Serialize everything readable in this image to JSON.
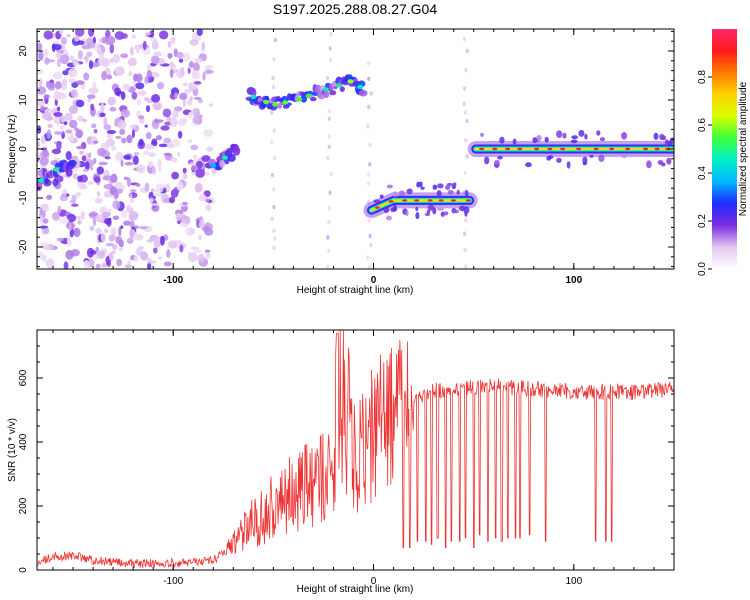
{
  "chart_data": [
    {
      "type": "heatmap",
      "title": "S197.2025.288.08.27.G04",
      "xlabel": "Height of straight line (km)",
      "ylabel": "Frequency (Hz)",
      "xlim": [
        -168,
        150
      ],
      "ylim": [
        -24.5,
        24.5
      ],
      "xticks": [
        -100,
        0,
        100
      ],
      "yticks": [
        20,
        10,
        0,
        -10,
        -20
      ],
      "colorbar": {
        "label": "Normalized spectral amplitude",
        "range": [
          0,
          1
        ],
        "ticks": [
          "0.0",
          "0.2",
          "0.4",
          "0.6",
          "0.8"
        ],
        "colors": [
          "#ffffff",
          "#e3c6f0",
          "#7a2ee0",
          "#1f2bff",
          "#00b7ff",
          "#00f0c8",
          "#3cff3c",
          "#d8ff00",
          "#ffd200",
          "#ff7a00",
          "#ff1a1a",
          "#ff2a6e"
        ]
      },
      "segments": [
        {
          "name": "noise-left",
          "x_range": [
            -168,
            -81
          ],
          "freq_range": [
            -24,
            24
          ],
          "amplitude": 0.15
        },
        {
          "name": "track-left",
          "x": [
            -168,
            -158,
            -150
          ],
          "freq": [
            -7,
            -4,
            -4
          ],
          "amplitude": 0.5
        },
        {
          "name": "track-rise",
          "x": [
            -82,
            -75,
            -68
          ],
          "freq": [
            -4,
            -2,
            0
          ],
          "amplitude": 0.45
        },
        {
          "name": "track-upper",
          "x": [
            -62,
            -50,
            -38,
            -25,
            -10,
            -5
          ],
          "freq": [
            11,
            9,
            10,
            12,
            14,
            12
          ],
          "amplitude": 0.55
        },
        {
          "name": "track-mid",
          "x": [
            -1,
            10,
            48
          ],
          "freq": [
            -12.5,
            -10.5,
            -10.5
          ],
          "amplitude": 0.9
        },
        {
          "name": "track-right",
          "x": [
            51,
            150
          ],
          "freq": [
            0,
            0
          ],
          "amplitude": 0.95
        }
      ]
    },
    {
      "type": "line",
      "xlabel": "Height of straight line (km)",
      "ylabel": "SNR (10 * v/v)",
      "xlim": [
        -168,
        150
      ],
      "ylim": [
        0,
        750
      ],
      "xticks": [
        -100,
        0,
        100
      ],
      "yticks": [
        0,
        200,
        400,
        600
      ],
      "series": [
        {
          "name": "SNR",
          "color": "#ee3333",
          "x": [
            -168,
            -160,
            -150,
            -140,
            -130,
            -120,
            -110,
            -100,
            -90,
            -80,
            -70,
            -60,
            -50,
            -40,
            -30,
            -20,
            -18,
            -10,
            0,
            10,
            20,
            30,
            40,
            50,
            60,
            70,
            80,
            90,
            100,
            110,
            120,
            130,
            140,
            150
          ],
          "y": [
            25,
            40,
            45,
            30,
            25,
            20,
            20,
            22,
            25,
            30,
            80,
            150,
            200,
            250,
            260,
            300,
            690,
            360,
            440,
            500,
            540,
            560,
            565,
            570,
            575,
            570,
            565,
            560,
            560,
            555,
            560,
            555,
            560,
            565
          ],
          "dropouts": {
            "x": [
              15,
              18,
              22,
              26,
              29,
              32,
              36,
              39,
              43,
              46,
              50,
              53,
              57,
              61,
              64,
              67,
              71,
              73,
              78,
              86,
              111,
              116,
              119
            ],
            "y": [
              70,
              70,
              90,
              90,
              80,
              100,
              70,
              90,
              90,
              100,
              70,
              110,
              90,
              100,
              90,
              100,
              100,
              100,
              110,
              90,
              90,
              90,
              90
            ]
          }
        }
      ]
    }
  ]
}
